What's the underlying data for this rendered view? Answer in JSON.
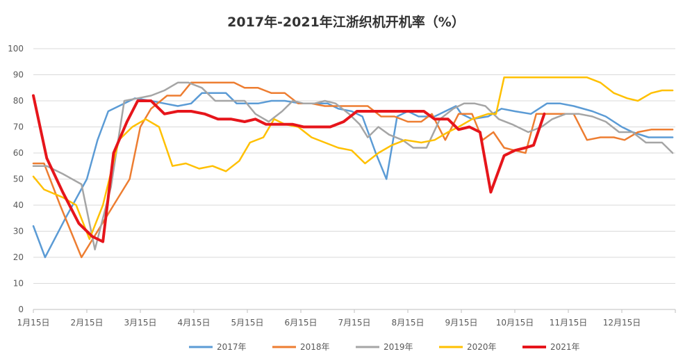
{
  "chart_data": {
    "type": "line",
    "title": "2017年-2021年江浙织机开机率（%）",
    "xlabel": "",
    "ylabel": "",
    "ylim": [
      0,
      100
    ],
    "yticks": [
      "0",
      "10",
      "20",
      "30",
      "40",
      "50",
      "60",
      "70",
      "80",
      "90",
      "100"
    ],
    "xticks": [
      "1月15日",
      "2月15日",
      "3月15日",
      "4月15日",
      "5月15日",
      "6月15日",
      "7月15日",
      "8月15日",
      "9月15日",
      "10月15日",
      "11月15日",
      "12月15日"
    ],
    "x_domain": [
      1,
      13
    ],
    "grid": true,
    "legend_position": "bottom",
    "series": [
      {
        "name": "2017年",
        "color": "#5B9BD5",
        "points": [
          [
            1.0,
            32
          ],
          [
            1.22,
            20
          ],
          [
            1.6,
            35
          ],
          [
            2.0,
            50
          ],
          [
            2.2,
            65
          ],
          [
            2.4,
            76
          ],
          [
            2.6,
            78
          ],
          [
            2.9,
            81
          ],
          [
            3.2,
            80
          ],
          [
            3.45,
            79
          ],
          [
            3.7,
            78
          ],
          [
            3.95,
            79
          ],
          [
            4.15,
            83
          ],
          [
            4.4,
            83
          ],
          [
            4.6,
            83
          ],
          [
            4.8,
            79
          ],
          [
            5.0,
            79
          ],
          [
            5.2,
            79
          ],
          [
            5.45,
            80
          ],
          [
            5.7,
            80
          ],
          [
            6.0,
            79
          ],
          [
            6.3,
            79
          ],
          [
            6.5,
            79
          ],
          [
            6.7,
            77
          ],
          [
            6.95,
            76
          ],
          [
            7.15,
            74
          ],
          [
            7.4,
            60
          ],
          [
            7.6,
            50
          ],
          [
            7.8,
            74
          ],
          [
            8.0,
            76
          ],
          [
            8.2,
            74
          ],
          [
            8.5,
            74
          ],
          [
            8.7,
            76
          ],
          [
            8.9,
            78
          ],
          [
            9.0,
            75
          ],
          [
            9.2,
            73
          ],
          [
            9.5,
            74
          ],
          [
            9.75,
            77
          ],
          [
            10.0,
            76
          ],
          [
            10.3,
            75
          ],
          [
            10.6,
            79
          ],
          [
            10.85,
            79
          ],
          [
            11.1,
            78
          ],
          [
            11.45,
            76
          ],
          [
            11.7,
            74
          ],
          [
            12.0,
            70
          ],
          [
            12.2,
            68
          ],
          [
            12.5,
            66
          ],
          [
            12.75,
            66
          ],
          [
            12.95,
            66
          ]
        ]
      },
      {
        "name": "2018年",
        "color": "#ED7D31",
        "points": [
          [
            1.0,
            56
          ],
          [
            1.2,
            56
          ],
          [
            1.5,
            40
          ],
          [
            1.9,
            20
          ],
          [
            2.2,
            30
          ],
          [
            2.5,
            40
          ],
          [
            2.8,
            50
          ],
          [
            3.0,
            70
          ],
          [
            3.2,
            77
          ],
          [
            3.5,
            82
          ],
          [
            3.75,
            82
          ],
          [
            3.95,
            87
          ],
          [
            4.25,
            87
          ],
          [
            4.5,
            87
          ],
          [
            4.75,
            87
          ],
          [
            4.95,
            85
          ],
          [
            5.2,
            85
          ],
          [
            5.45,
            83
          ],
          [
            5.7,
            83
          ],
          [
            5.95,
            79
          ],
          [
            6.2,
            79
          ],
          [
            6.45,
            78
          ],
          [
            6.75,
            78
          ],
          [
            7.0,
            78
          ],
          [
            7.25,
            78
          ],
          [
            7.5,
            74
          ],
          [
            7.75,
            74
          ],
          [
            8.0,
            72
          ],
          [
            8.25,
            72
          ],
          [
            8.45,
            75
          ],
          [
            8.7,
            65
          ],
          [
            8.95,
            75
          ],
          [
            9.2,
            75
          ],
          [
            9.4,
            65
          ],
          [
            9.6,
            68
          ],
          [
            9.8,
            62
          ],
          [
            10.0,
            61
          ],
          [
            10.2,
            60
          ],
          [
            10.4,
            75
          ],
          [
            10.6,
            75
          ],
          [
            10.9,
            75
          ],
          [
            11.1,
            75
          ],
          [
            11.35,
            65
          ],
          [
            11.6,
            66
          ],
          [
            11.85,
            66
          ],
          [
            12.05,
            65
          ],
          [
            12.3,
            68
          ],
          [
            12.55,
            69
          ],
          [
            12.75,
            69
          ],
          [
            12.95,
            69
          ]
        ]
      },
      {
        "name": "2019年",
        "color": "#A5A5A5",
        "points": [
          [
            1.0,
            55
          ],
          [
            1.25,
            55
          ],
          [
            1.55,
            52
          ],
          [
            1.9,
            48
          ],
          [
            2.15,
            23
          ],
          [
            2.45,
            47
          ],
          [
            2.7,
            80
          ],
          [
            2.95,
            81
          ],
          [
            3.2,
            82
          ],
          [
            3.45,
            84
          ],
          [
            3.7,
            87
          ],
          [
            3.9,
            87
          ],
          [
            4.15,
            85
          ],
          [
            4.4,
            80
          ],
          [
            4.7,
            80
          ],
          [
            4.95,
            80
          ],
          [
            5.15,
            75
          ],
          [
            5.4,
            72
          ],
          [
            5.65,
            76
          ],
          [
            5.85,
            80
          ],
          [
            6.05,
            79
          ],
          [
            6.25,
            79
          ],
          [
            6.45,
            80
          ],
          [
            6.65,
            79
          ],
          [
            6.9,
            75
          ],
          [
            7.1,
            71
          ],
          [
            7.25,
            66
          ],
          [
            7.45,
            70
          ],
          [
            7.65,
            67
          ],
          [
            7.9,
            65
          ],
          [
            8.1,
            62
          ],
          [
            8.35,
            62
          ],
          [
            8.6,
            73
          ],
          [
            8.85,
            77
          ],
          [
            9.05,
            79
          ],
          [
            9.25,
            79
          ],
          [
            9.45,
            78
          ],
          [
            9.7,
            73
          ],
          [
            9.95,
            71
          ],
          [
            10.25,
            68
          ],
          [
            10.5,
            70
          ],
          [
            10.7,
            73
          ],
          [
            10.95,
            75
          ],
          [
            11.2,
            75
          ],
          [
            11.45,
            74
          ],
          [
            11.7,
            72
          ],
          [
            11.95,
            68
          ],
          [
            12.2,
            68
          ],
          [
            12.45,
            64
          ],
          [
            12.75,
            64
          ],
          [
            12.95,
            60
          ]
        ]
      },
      {
        "name": "2020年",
        "color": "#FFC000",
        "points": [
          [
            1.0,
            51
          ],
          [
            1.2,
            46
          ],
          [
            1.55,
            43
          ],
          [
            1.8,
            40
          ],
          [
            2.05,
            27
          ],
          [
            2.3,
            40
          ],
          [
            2.6,
            65
          ],
          [
            2.85,
            70
          ],
          [
            3.1,
            73
          ],
          [
            3.35,
            70
          ],
          [
            3.6,
            55
          ],
          [
            3.85,
            56
          ],
          [
            4.1,
            54
          ],
          [
            4.35,
            55
          ],
          [
            4.6,
            53
          ],
          [
            4.85,
            57
          ],
          [
            5.05,
            64
          ],
          [
            5.3,
            66
          ],
          [
            5.5,
            73
          ],
          [
            5.7,
            71
          ],
          [
            5.95,
            70
          ],
          [
            6.2,
            66
          ],
          [
            6.45,
            64
          ],
          [
            6.7,
            62
          ],
          [
            6.95,
            61
          ],
          [
            7.2,
            56
          ],
          [
            7.45,
            60
          ],
          [
            7.7,
            63
          ],
          [
            7.95,
            65
          ],
          [
            8.25,
            64
          ],
          [
            8.5,
            65
          ],
          [
            8.75,
            68
          ],
          [
            8.95,
            70
          ],
          [
            9.2,
            73
          ],
          [
            9.5,
            75
          ],
          [
            9.65,
            75
          ],
          [
            9.8,
            89
          ],
          [
            10.1,
            89
          ],
          [
            10.4,
            89
          ],
          [
            10.75,
            89
          ],
          [
            11.05,
            89
          ],
          [
            11.35,
            89
          ],
          [
            11.6,
            87
          ],
          [
            11.85,
            83
          ],
          [
            12.1,
            81
          ],
          [
            12.3,
            80
          ],
          [
            12.55,
            83
          ],
          [
            12.75,
            84
          ],
          [
            12.95,
            84
          ]
        ]
      },
      {
        "name": "2021年",
        "color": "#E6151B",
        "points": [
          [
            1.0,
            82
          ],
          [
            1.25,
            58
          ],
          [
            1.55,
            45
          ],
          [
            1.85,
            33
          ],
          [
            2.1,
            28
          ],
          [
            2.3,
            26
          ],
          [
            2.5,
            60
          ],
          [
            2.75,
            72
          ],
          [
            2.95,
            80
          ],
          [
            3.2,
            80
          ],
          [
            3.45,
            75
          ],
          [
            3.7,
            76
          ],
          [
            3.95,
            76
          ],
          [
            4.2,
            75
          ],
          [
            4.45,
            73
          ],
          [
            4.7,
            73
          ],
          [
            4.95,
            72
          ],
          [
            5.15,
            73
          ],
          [
            5.35,
            71
          ],
          [
            5.6,
            71
          ],
          [
            5.85,
            71
          ],
          [
            6.05,
            70
          ],
          [
            6.3,
            70
          ],
          [
            6.55,
            70
          ],
          [
            6.8,
            72
          ],
          [
            7.05,
            76
          ],
          [
            7.3,
            76
          ],
          [
            7.55,
            76
          ],
          [
            7.8,
            76
          ],
          [
            8.05,
            76
          ],
          [
            8.3,
            76
          ],
          [
            8.5,
            73
          ],
          [
            8.75,
            73
          ],
          [
            8.95,
            69
          ],
          [
            9.15,
            70
          ],
          [
            9.35,
            68
          ],
          [
            9.55,
            45
          ],
          [
            9.8,
            59
          ],
          [
            10.0,
            61
          ],
          [
            10.2,
            62
          ],
          [
            10.35,
            63
          ],
          [
            10.55,
            75
          ]
        ]
      }
    ]
  }
}
